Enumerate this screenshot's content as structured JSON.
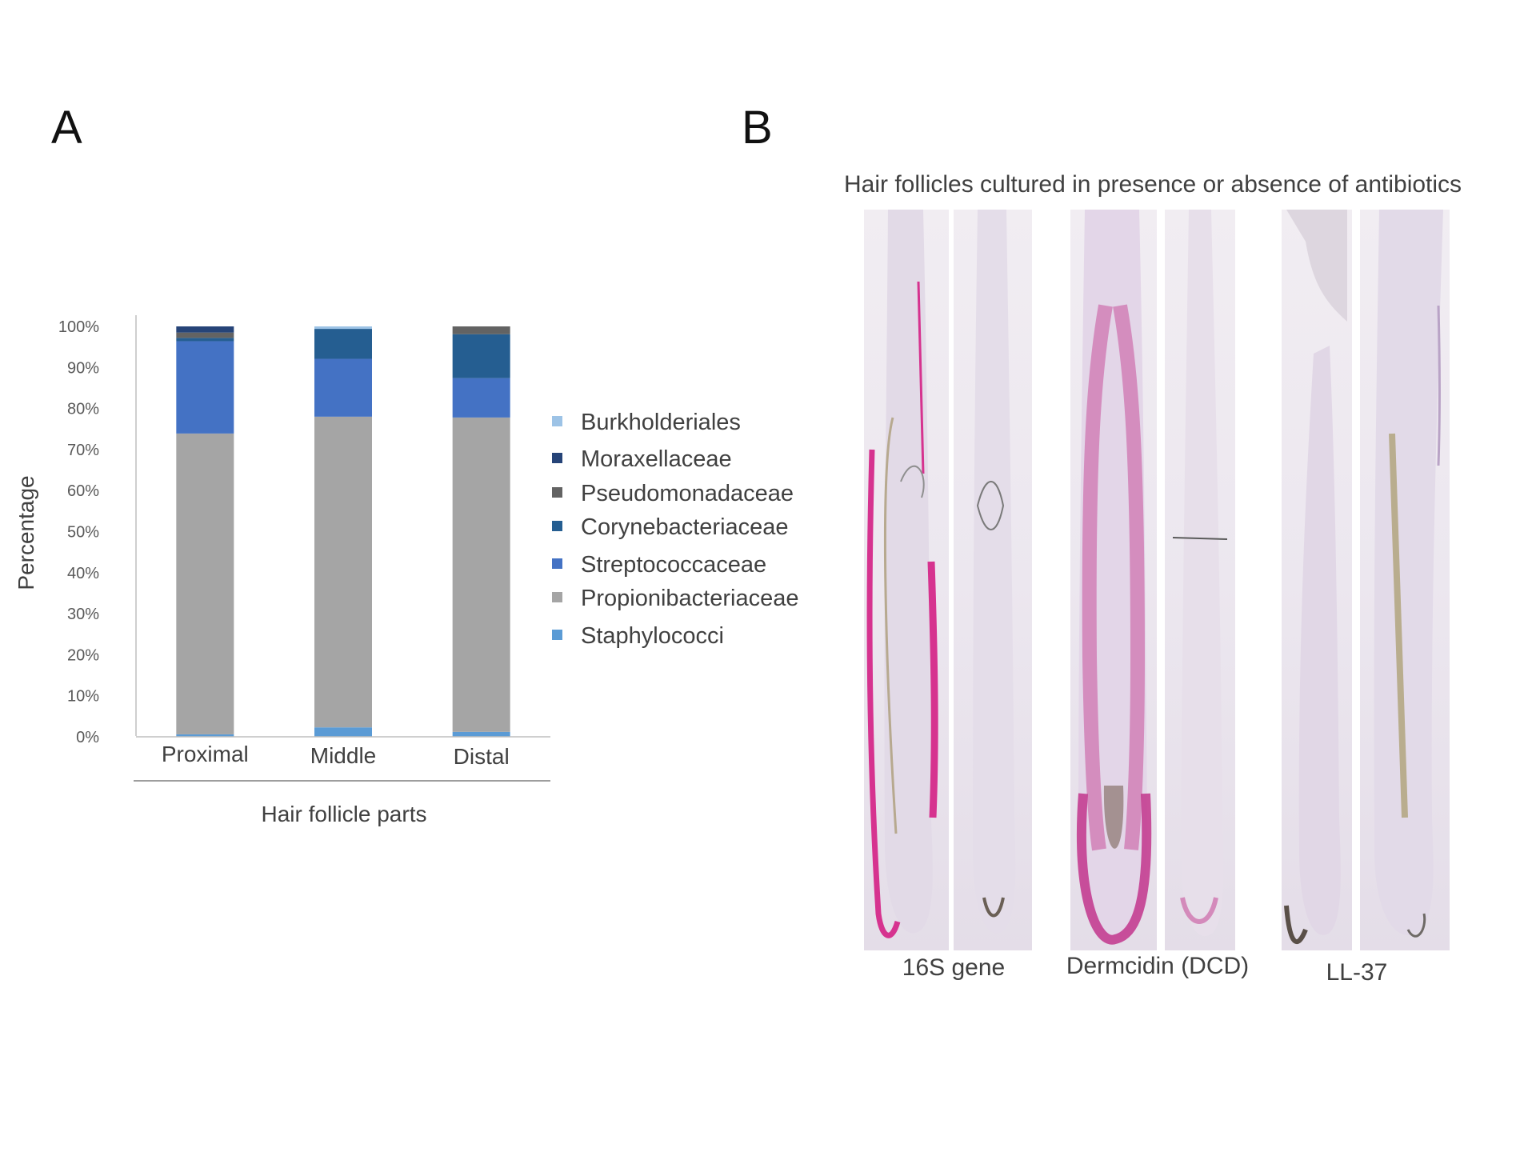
{
  "panels": {
    "a_letter": "A",
    "b_letter": "B"
  },
  "chart_data": {
    "type": "bar",
    "stacked": true,
    "categories": [
      "Proximal",
      "Middle",
      "Distal"
    ],
    "xlabel": "Hair follicle parts",
    "ylabel": "Percentage",
    "ylim": [
      0,
      100
    ],
    "yticks": [
      "0%",
      "10%",
      "20%",
      "30%",
      "40%",
      "50%",
      "60%",
      "70%",
      "80%",
      "90%",
      "100%"
    ],
    "series": [
      {
        "name": "Staphylococci",
        "color": "#5b9bd5",
        "values": [
          0.6,
          2.3,
          1.2
        ]
      },
      {
        "name": "Propionibacteriaceae",
        "color": "#a5a5a5",
        "values": [
          73.3,
          75.7,
          76.6
        ]
      },
      {
        "name": "Streptococcaceae",
        "color": "#4472c4",
        "values": [
          22.5,
          14.1,
          9.6
        ]
      },
      {
        "name": "Corynebacteriaceae",
        "color": "#255e91",
        "values": [
          0.8,
          7.3,
          10.7
        ]
      },
      {
        "name": "Pseudomonadaceae",
        "color": "#636363",
        "values": [
          1.3,
          0,
          1.9
        ]
      },
      {
        "name": "Moraxellaceae",
        "color": "#264478",
        "values": [
          1.5,
          0,
          0
        ]
      },
      {
        "name": "Burkholderiales",
        "color": "#9dc3e6",
        "values": [
          0,
          0.6,
          0
        ]
      }
    ],
    "legend_order": [
      "Burkholderiales",
      "Moraxellaceae",
      "Pseudomonadaceae",
      "Corynebacteriaceae",
      "Streptococcaceae",
      "Propionibacteriaceae",
      "Staphylococci"
    ],
    "legend_position": "right",
    "grid": false
  },
  "panel_b": {
    "title": "Hair follicles cultured in presence or absence of antibiotics",
    "groups": [
      {
        "label": "16S gene",
        "stain_color": "#d6338f"
      },
      {
        "label": "Dermcidin (DCD)",
        "stain_color": "#c2358c"
      },
      {
        "label": "LL-37",
        "stain_color": "#b9a3c6"
      }
    ]
  }
}
